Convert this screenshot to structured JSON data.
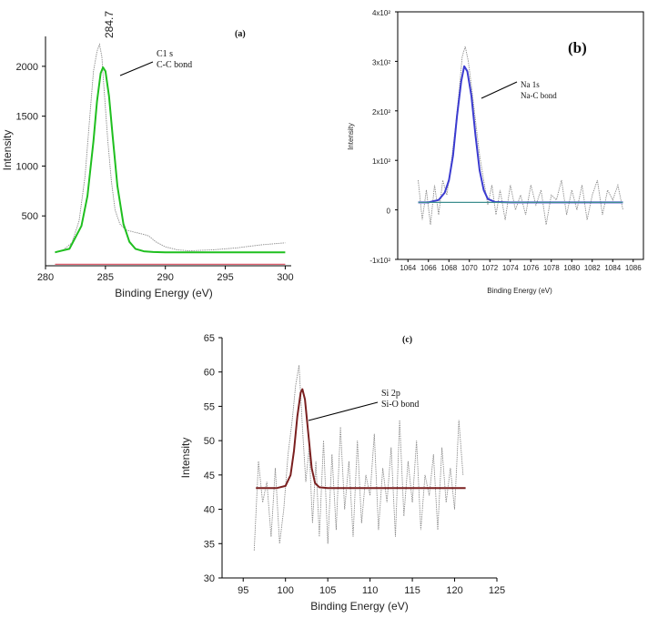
{
  "chart_data": [
    {
      "panel": "(a)",
      "type": "line",
      "xlabel": "Binding Energy (eV)",
      "ylabel": "Intensity",
      "xlim": [
        280,
        300.5
      ],
      "ylim": [
        0,
        2300
      ],
      "x_ticks": [
        280,
        285,
        290,
        295,
        300
      ],
      "y_ticks": [
        500,
        1000,
        1500,
        2000
      ],
      "peak_label": "284.7",
      "annotation": [
        "C1 s",
        "C-C bond"
      ],
      "series": [
        {
          "kind": "raw",
          "x": [
            280.8,
            281.5,
            282.2,
            282.8,
            283.3,
            283.7,
            284.0,
            284.3,
            284.5,
            284.7,
            284.9,
            285.2,
            285.5,
            285.8,
            286.2,
            286.7,
            287.3,
            288.0,
            288.6,
            289.2,
            290.0,
            291.0,
            292.0,
            293.0,
            294.0,
            295.0,
            296.0,
            297.0,
            298.0,
            299.0,
            300.0
          ],
          "y": [
            130,
            160,
            230,
            450,
            900,
            1500,
            1950,
            2150,
            2220,
            2100,
            1750,
            1250,
            850,
            560,
            420,
            360,
            340,
            320,
            300,
            240,
            190,
            160,
            150,
            155,
            160,
            170,
            180,
            195,
            210,
            220,
            230
          ]
        },
        {
          "kind": "fit",
          "color": "#1fbf1f",
          "x": [
            280.8,
            282.0,
            283.0,
            283.5,
            284.0,
            284.3,
            284.6,
            284.8,
            285.0,
            285.3,
            285.6,
            286.0,
            286.5,
            287.0,
            287.5,
            288.2,
            289.0,
            290.0,
            292.0,
            295.0,
            298.0,
            300.0
          ],
          "y": [
            135,
            170,
            400,
            700,
            1250,
            1650,
            1930,
            1990,
            1950,
            1700,
            1300,
            800,
            420,
            240,
            170,
            145,
            138,
            135,
            135,
            135,
            135,
            135
          ]
        },
        {
          "kind": "baseline",
          "color": "#e06070",
          "x": [
            280.8,
            300.0
          ],
          "y": [
            15,
            15
          ]
        }
      ]
    },
    {
      "panel": "(b)",
      "type": "line",
      "xlabel": "Binding Energy (eV)",
      "ylabel": "Intensity",
      "xlim": [
        1063,
        1087
      ],
      "ylim": [
        -100,
        400
      ],
      "x_ticks": [
        1064,
        1066,
        1068,
        1070,
        1072,
        1074,
        1076,
        1078,
        1080,
        1082,
        1084,
        1086
      ],
      "y_ticks": [
        -100,
        0,
        100,
        200,
        300,
        400
      ],
      "y_tick_labels": [
        "-1x10²",
        "0",
        "1x10²",
        "2x10²",
        "3x10²",
        "4x10²"
      ],
      "annotation": [
        "Na 1s",
        "Na-C bond"
      ],
      "series": [
        {
          "kind": "raw",
          "x": [
            1065.0,
            1065.4,
            1065.8,
            1066.2,
            1066.6,
            1067.0,
            1067.4,
            1067.8,
            1068.2,
            1068.6,
            1069.0,
            1069.3,
            1069.6,
            1069.9,
            1070.2,
            1070.6,
            1071.0,
            1071.4,
            1071.8,
            1072.2,
            1072.6,
            1073.0,
            1073.5,
            1074.0,
            1074.5,
            1075.0,
            1075.5,
            1076.0,
            1076.5,
            1077.0,
            1077.5,
            1078.0,
            1078.5,
            1079.0,
            1079.5,
            1080.0,
            1080.5,
            1081.0,
            1081.5,
            1082.0,
            1082.5,
            1083.0,
            1083.5,
            1084.0,
            1084.5,
            1085.0
          ],
          "y": [
            60,
            -20,
            40,
            -30,
            50,
            -10,
            60,
            30,
            90,
            160,
            240,
            310,
            330,
            300,
            250,
            180,
            110,
            60,
            10,
            50,
            -10,
            40,
            -20,
            50,
            0,
            30,
            -10,
            50,
            10,
            40,
            -30,
            30,
            20,
            60,
            -10,
            40,
            0,
            50,
            -20,
            30,
            60,
            -10,
            40,
            20,
            50,
            0
          ]
        },
        {
          "kind": "fit",
          "color": "#3b3bd0",
          "x": [
            1065.0,
            1066.0,
            1067.0,
            1067.6,
            1068.0,
            1068.4,
            1068.8,
            1069.2,
            1069.5,
            1069.8,
            1070.2,
            1070.6,
            1071.0,
            1071.4,
            1071.8,
            1072.5,
            1074.0,
            1078.0,
            1082.0,
            1085.0
          ],
          "y": [
            15,
            15,
            20,
            35,
            60,
            110,
            190,
            260,
            290,
            280,
            230,
            150,
            80,
            40,
            22,
            16,
            15,
            15,
            15,
            15
          ]
        },
        {
          "kind": "baseline",
          "color": "#3f8f8f",
          "x": [
            1065.0,
            1085.0
          ],
          "y": [
            15,
            15
          ]
        }
      ]
    },
    {
      "panel": "(c)",
      "type": "line",
      "xlabel": "Binding Energy (eV)",
      "ylabel": "Intensity",
      "xlim": [
        92.5,
        125
      ],
      "ylim": [
        30,
        65
      ],
      "x_ticks": [
        95,
        100,
        105,
        110,
        115,
        120,
        125
      ],
      "y_ticks": [
        30,
        35,
        40,
        45,
        50,
        55,
        60,
        65
      ],
      "annotation": [
        "Si 2p",
        "Si-O bond"
      ],
      "series": [
        {
          "kind": "raw",
          "x": [
            96.3,
            96.8,
            97.3,
            97.8,
            98.3,
            98.8,
            99.3,
            99.8,
            100.3,
            100.8,
            101.2,
            101.6,
            102.0,
            102.4,
            102.8,
            103.2,
            103.6,
            104.0,
            104.5,
            105.0,
            105.5,
            106.0,
            106.5,
            107.0,
            107.5,
            108.0,
            108.5,
            109.0,
            109.5,
            110.0,
            110.5,
            111.0,
            111.5,
            112.0,
            112.5,
            113.0,
            113.5,
            114.0,
            114.5,
            115.0,
            115.5,
            116.0,
            116.5,
            117.0,
            117.5,
            118.0,
            118.5,
            119.0,
            119.5,
            120.0,
            120.5,
            121.0
          ],
          "y": [
            34,
            47,
            41,
            44,
            36,
            46,
            35,
            40,
            48,
            53,
            58,
            61,
            52,
            44,
            49,
            38,
            47,
            36,
            50,
            35,
            48,
            37,
            52,
            40,
            47,
            36,
            50,
            38,
            45,
            42,
            51,
            37,
            46,
            41,
            49,
            36,
            53,
            39,
            47,
            41,
            50,
            37,
            45,
            42,
            48,
            37,
            49,
            41,
            46,
            40,
            53,
            45
          ]
        },
        {
          "kind": "fit",
          "color": "#7a1f1f",
          "x": [
            96.5,
            99.0,
            100.0,
            100.6,
            101.0,
            101.4,
            101.8,
            102.0,
            102.3,
            102.7,
            103.1,
            103.5,
            104.0,
            105.0,
            110.0,
            115.0,
            121.3
          ],
          "y": [
            43.1,
            43.1,
            43.4,
            45.0,
            48.5,
            53.5,
            57.0,
            57.5,
            56.0,
            51.0,
            46.0,
            43.8,
            43.2,
            43.1,
            43.1,
            43.1,
            43.1
          ]
        }
      ]
    }
  ]
}
